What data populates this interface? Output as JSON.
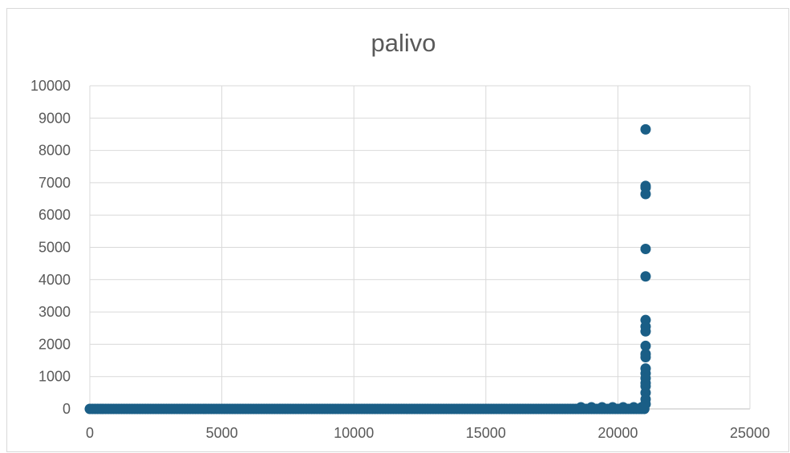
{
  "chart_data": {
    "type": "scatter",
    "title": "palivo",
    "xlabel": "",
    "ylabel": "",
    "xlim": [
      0,
      25000
    ],
    "ylim": [
      0,
      10000
    ],
    "x_ticks": [
      0,
      5000,
      10000,
      15000,
      20000,
      25000
    ],
    "y_ticks": [
      0,
      1000,
      2000,
      3000,
      4000,
      5000,
      6000,
      7000,
      8000,
      9000,
      10000
    ],
    "grid": true,
    "legend": "none",
    "marker_color": "#1a5e86",
    "series": [
      {
        "dense_baseline": {
          "x_start": 0,
          "x_end": 21000,
          "y": 0,
          "step": 100
        },
        "points": [
          {
            "x": 21050,
            "y": 8650
          },
          {
            "x": 21050,
            "y": 6900
          },
          {
            "x": 21050,
            "y": 6850
          },
          {
            "x": 21050,
            "y": 6650
          },
          {
            "x": 21050,
            "y": 4950
          },
          {
            "x": 21050,
            "y": 4100
          },
          {
            "x": 21050,
            "y": 2750
          },
          {
            "x": 21050,
            "y": 2550
          },
          {
            "x": 21050,
            "y": 2400
          },
          {
            "x": 21050,
            "y": 1950
          },
          {
            "x": 21050,
            "y": 1700
          },
          {
            "x": 21050,
            "y": 1600
          },
          {
            "x": 21050,
            "y": 1250
          },
          {
            "x": 21050,
            "y": 1100
          },
          {
            "x": 21050,
            "y": 950
          },
          {
            "x": 21050,
            "y": 800
          },
          {
            "x": 21050,
            "y": 700
          },
          {
            "x": 21050,
            "y": 500
          },
          {
            "x": 21050,
            "y": 300
          },
          {
            "x": 21050,
            "y": 150
          },
          {
            "x": 21000,
            "y": 100
          },
          {
            "x": 20900,
            "y": 50
          },
          {
            "x": 18600,
            "y": 50
          },
          {
            "x": 19000,
            "y": 50
          },
          {
            "x": 19400,
            "y": 50
          },
          {
            "x": 19800,
            "y": 50
          },
          {
            "x": 20200,
            "y": 50
          },
          {
            "x": 20600,
            "y": 50
          }
        ]
      }
    ]
  }
}
